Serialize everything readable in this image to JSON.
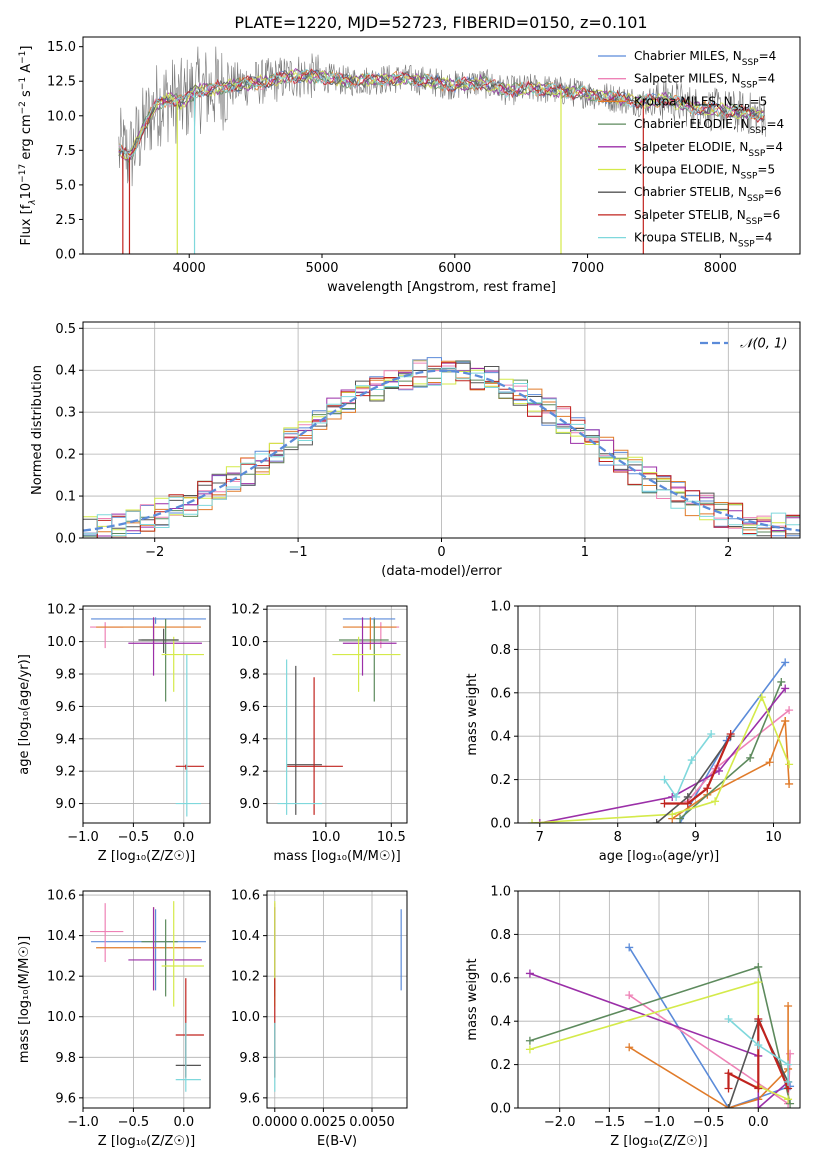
{
  "figure": {
    "title": "PLATE=1220, MJD=52723, FIBERID=0150, z=0.101"
  },
  "series_styles": [
    {
      "name": "Chabrier MILES",
      "nssp": "4",
      "color": "#5b8bd9"
    },
    {
      "name": "Salpeter MILES",
      "nssp": "4",
      "color": "#ee82b6"
    },
    {
      "name": "Kroupa MILES",
      "nssp": "5",
      "color": "#e07b2a"
    },
    {
      "name": "Chabrier ELODIE",
      "nssp": "4",
      "color": "#5d8a5d"
    },
    {
      "name": "Salpeter ELODIE",
      "nssp": "4",
      "color": "#9b2fa8"
    },
    {
      "name": "Kroupa ELODIE",
      "nssp": "5",
      "color": "#d4ea4a"
    },
    {
      "name": "Chabrier STELIB",
      "nssp": "6",
      "color": "#555555"
    },
    {
      "name": "Salpeter STELIB",
      "nssp": "6",
      "color": "#c0231e"
    },
    {
      "name": "Kroupa STELIB",
      "nssp": "4",
      "color": "#7fd8dc"
    }
  ],
  "chart_data": [
    {
      "type": "line",
      "panel": "spectrum",
      "title": "PLATE=1220, MJD=52723, FIBERID=0150, z=0.101",
      "xlabel": "wavelength [Angstrom, rest frame]",
      "ylabel_parts": [
        "Flux [f",
        "λ",
        "10",
        "−17",
        " erg cm",
        "−2",
        " s",
        "−1",
        " A",
        "−1",
        "]"
      ],
      "xlim": [
        3200,
        8600
      ],
      "ylim": [
        0,
        15.7
      ],
      "xticks": [
        4000,
        5000,
        6000,
        7000,
        8000
      ],
      "yticks": [
        0.0,
        2.5,
        5.0,
        7.5,
        10.0,
        12.5,
        15.0
      ],
      "ytick_labels": [
        "0.0",
        "2.5",
        "5.0",
        "7.5",
        "10.0",
        "12.5",
        "15.0"
      ],
      "legend": "top-right",
      "spectrum_anchors": {
        "x": [
          3470,
          3550,
          3650,
          3750,
          3850,
          3950,
          4050,
          4200,
          4400,
          4600,
          4800,
          5000,
          5200,
          5400,
          5600,
          5800,
          6000,
          6200,
          6400,
          6600,
          6800,
          7000,
          7200,
          7400,
          7600,
          7800,
          8000,
          8200,
          8340
        ],
        "y": [
          7.5,
          7.0,
          9.0,
          10.8,
          11.2,
          11.0,
          11.8,
          12.0,
          12.3,
          12.5,
          12.9,
          12.8,
          12.5,
          12.6,
          12.7,
          12.5,
          12.2,
          12.4,
          11.8,
          12.0,
          11.8,
          11.6,
          11.3,
          11.0,
          11.2,
          10.6,
          10.4,
          10.2,
          10.0
        ]
      },
      "dropouts": [
        {
          "x": 3500,
          "color": "#c0231e"
        },
        {
          "x": 3550,
          "color": "#c0231e"
        },
        {
          "x": 3910,
          "color": "#d4ea4a"
        },
        {
          "x": 4040,
          "color": "#7fd8dc"
        },
        {
          "x": 6800,
          "color": "#d4ea4a"
        },
        {
          "x": 7420,
          "color": "#c0231e"
        }
      ]
    },
    {
      "type": "histogram",
      "panel": "residuals",
      "xlabel": "(data-model)/error",
      "ylabel": "Normed distribution",
      "xlim": [
        -2.5,
        2.5
      ],
      "ylim": [
        0,
        0.515
      ],
      "xticks": [
        -2,
        -1,
        0,
        1,
        2
      ],
      "xtick_labels": [
        "−2",
        "−1",
        "0",
        "1",
        "2"
      ],
      "yticks": [
        0.0,
        0.1,
        0.2,
        0.3,
        0.4,
        0.5
      ],
      "ytick_labels": [
        "0.0",
        "0.1",
        "0.2",
        "0.3",
        "0.4",
        "0.5"
      ],
      "bin_width": 0.1,
      "reference": {
        "name": "𝒩(0, 1)",
        "mean": 0,
        "sigma": 1,
        "color": "#5b8bd9",
        "style": "dashed"
      },
      "legend": "top-right"
    },
    {
      "type": "errorbar",
      "panel": "age-vs-Z",
      "xlabel": "Z [log₁₀(Z/Z☉)]",
      "ylabel": "age  [log₁₀(age/yr)]",
      "xlim": [
        -1.0,
        0.26
      ],
      "ylim": [
        8.88,
        10.22
      ],
      "xticks": [
        -1.0,
        -0.5,
        0.0
      ],
      "xtick_labels": [
        "−1.0",
        "−0.5",
        "0.0"
      ],
      "yticks": [
        9.0,
        9.2,
        9.4,
        9.6,
        9.8,
        10.0,
        10.2
      ],
      "ytick_labels": [
        "9.0",
        "9.2",
        "9.4",
        "9.6",
        "9.8",
        "10.0",
        "10.2"
      ],
      "points": [
        {
          "s": 0,
          "x": -0.28,
          "xl": -0.92,
          "xh": 0.22,
          "y": 10.14,
          "yl": 10.11,
          "yh": 10.15
        },
        {
          "s": 1,
          "x": -0.78,
          "xl": -0.93,
          "xh": -0.6,
          "y": 10.09,
          "yl": 9.96,
          "yh": 10.12
        },
        {
          "s": 2,
          "x": -0.3,
          "xl": -0.87,
          "xh": 0.17,
          "y": 10.09,
          "yl": 9.95,
          "yh": 10.15
        },
        {
          "s": 3,
          "x": -0.18,
          "xl": -0.42,
          "xh": -0.06,
          "y": 10.01,
          "yl": 9.63,
          "yh": 10.14
        },
        {
          "s": 4,
          "x": -0.3,
          "xl": -0.55,
          "xh": 0.18,
          "y": 9.99,
          "yl": 9.79,
          "yh": 10.15
        },
        {
          "s": 5,
          "x": -0.1,
          "xl": -0.22,
          "xh": 0.2,
          "y": 9.92,
          "yl": 9.69,
          "yh": 10.03
        },
        {
          "s": 6,
          "x": -0.2,
          "xl": -0.45,
          "xh": -0.05,
          "y": 10.01,
          "yl": 9.93,
          "yh": 10.08
        },
        {
          "s": 7,
          "x": 0.02,
          "xl": -0.08,
          "xh": 0.2,
          "y": 9.23,
          "yl": 9.21,
          "yh": 9.24
        },
        {
          "s": 8,
          "x": 0.03,
          "xl": -0.08,
          "xh": 0.17,
          "y": 9.0,
          "yl": 8.92,
          "yh": 9.92
        }
      ]
    },
    {
      "type": "errorbar",
      "panel": "age-vs-mass",
      "xlabel": "mass [log₁₀(M/M☉)]",
      "xlim": [
        9.55,
        10.62
      ],
      "ylim": [
        8.88,
        10.22
      ],
      "xticks": [
        10.0,
        10.5
      ],
      "xtick_labels": [
        "10.0",
        "10.5"
      ],
      "yticks": [
        9.0,
        9.2,
        9.4,
        9.6,
        9.8,
        10.0,
        10.2
      ],
      "ytick_labels": [
        "9.0",
        "9.2",
        "9.4",
        "9.6",
        "9.8",
        "10.0",
        "10.2"
      ],
      "points": [
        {
          "s": 0,
          "x": 10.37,
          "xl": 10.13,
          "xh": 10.53,
          "y": 10.14,
          "yl": 10.11,
          "yh": 10.15
        },
        {
          "s": 1,
          "x": 10.42,
          "xl": 10.27,
          "xh": 10.56,
          "y": 10.09,
          "yl": 9.96,
          "yh": 10.12
        },
        {
          "s": 2,
          "x": 10.34,
          "xl": 10.13,
          "xh": 10.54,
          "y": 10.09,
          "yl": 9.95,
          "yh": 10.15
        },
        {
          "s": 3,
          "x": 10.37,
          "xl": 10.1,
          "xh": 10.48,
          "y": 10.01,
          "yl": 9.63,
          "yh": 10.14
        },
        {
          "s": 4,
          "x": 10.28,
          "xl": 10.13,
          "xh": 10.54,
          "y": 9.99,
          "yl": 9.79,
          "yh": 10.15
        },
        {
          "s": 5,
          "x": 10.25,
          "xl": 10.05,
          "xh": 10.57,
          "y": 9.92,
          "yl": 9.69,
          "yh": 10.03
        },
        {
          "s": 6,
          "x": 9.77,
          "xl": 9.7,
          "xh": 9.97,
          "y": 9.24,
          "yl": 8.93,
          "yh": 9.85
        },
        {
          "s": 7,
          "x": 9.91,
          "xl": 9.7,
          "xh": 10.13,
          "y": 9.23,
          "yl": 8.93,
          "yh": 9.78
        },
        {
          "s": 8,
          "x": 9.7,
          "xl": 9.63,
          "xh": 9.97,
          "y": 9.0,
          "yl": 8.93,
          "yh": 9.89
        }
      ]
    },
    {
      "type": "line",
      "panel": "massweight-vs-age",
      "xlabel": "age  [log₁₀(age/yr)]",
      "ylabel": "mass weight",
      "xlim": [
        6.72,
        10.34
      ],
      "ylim": [
        0,
        1.0
      ],
      "xticks": [
        7,
        8,
        9,
        10
      ],
      "xtick_labels": [
        "7",
        "8",
        "9",
        "10"
      ],
      "yticks": [
        0.0,
        0.2,
        0.4,
        0.6,
        0.8,
        1.0
      ],
      "ytick_labels": [
        "0.0",
        "0.2",
        "0.4",
        "0.6",
        "0.8",
        "1.0"
      ],
      "series": [
        {
          "s": 0,
          "x": [
            8.8,
            9.4,
            10.15
          ],
          "y": [
            0.0,
            0.38,
            0.74
          ]
        },
        {
          "s": 1,
          "x": [
            8.9,
            9.25,
            10.2
          ],
          "y": [
            0.1,
            0.25,
            0.52
          ]
        },
        {
          "s": 2,
          "x": [
            8.7,
            9.15,
            9.95,
            10.15,
            10.2,
            10.15
          ],
          "y": [
            0.02,
            0.13,
            0.28,
            0.47,
            0.18,
            0.47
          ]
        },
        {
          "s": 3,
          "x": [
            8.8,
            9.7,
            10.1
          ],
          "y": [
            0.02,
            0.3,
            0.65
          ]
        },
        {
          "s": 4,
          "x": [
            7.0,
            8.7,
            9.3,
            10.15
          ],
          "y": [
            0.0,
            0.12,
            0.24,
            0.62
          ]
        },
        {
          "s": 5,
          "x": [
            6.9,
            8.7,
            9.25,
            9.85,
            10.2
          ],
          "y": [
            0.0,
            0.04,
            0.1,
            0.58,
            0.27
          ]
        },
        {
          "s": 6,
          "x": [
            8.5,
            8.9,
            9.45
          ],
          "y": [
            0.0,
            0.12,
            0.4
          ]
        },
        {
          "s": 7,
          "x": [
            8.6,
            8.9,
            9.15,
            9.45
          ],
          "y": [
            0.09,
            0.09,
            0.16,
            0.41
          ]
        },
        {
          "s": 8,
          "x": [
            8.6,
            8.75,
            8.95,
            9.2
          ],
          "y": [
            0.2,
            0.12,
            0.29,
            0.41
          ]
        }
      ]
    },
    {
      "type": "errorbar",
      "panel": "mass-vs-Z",
      "xlabel": "Z [log₁₀(Z/Z☉)]",
      "ylabel": "mass [log₁₀(M/M☉)]",
      "xlim": [
        -1.0,
        0.26
      ],
      "ylim": [
        9.55,
        10.62
      ],
      "xticks": [
        -1.0,
        -0.5,
        0.0
      ],
      "xtick_labels": [
        "−1.0",
        "−0.5",
        "0.0"
      ],
      "yticks": [
        9.6,
        9.8,
        10.0,
        10.2,
        10.4,
        10.6
      ],
      "ytick_labels": [
        "9.6",
        "9.8",
        "10.0",
        "10.2",
        "10.4",
        "10.6"
      ],
      "points": [
        {
          "s": 0,
          "x": -0.28,
          "xl": -0.92,
          "xh": 0.22,
          "y": 10.37,
          "yl": 10.13,
          "yh": 10.53
        },
        {
          "s": 1,
          "x": -0.78,
          "xl": -0.93,
          "xh": -0.6,
          "y": 10.42,
          "yl": 10.27,
          "yh": 10.56
        },
        {
          "s": 2,
          "x": -0.3,
          "xl": -0.87,
          "xh": 0.17,
          "y": 10.34,
          "yl": 10.13,
          "yh": 10.54
        },
        {
          "s": 3,
          "x": -0.18,
          "xl": -0.42,
          "xh": -0.06,
          "y": 10.37,
          "yl": 10.1,
          "yh": 10.48
        },
        {
          "s": 4,
          "x": -0.3,
          "xl": -0.55,
          "xh": 0.18,
          "y": 10.28,
          "yl": 10.13,
          "yh": 10.54
        },
        {
          "s": 5,
          "x": -0.1,
          "xl": -0.22,
          "xh": 0.2,
          "y": 10.25,
          "yl": 10.05,
          "yh": 10.57
        },
        {
          "s": 6,
          "x": 0.02,
          "xl": -0.08,
          "xh": 0.17,
          "y": 9.76,
          "yl": 9.7,
          "yh": 9.97
        },
        {
          "s": 7,
          "x": 0.02,
          "xl": -0.08,
          "xh": 0.2,
          "y": 9.91,
          "yl": 9.7,
          "yh": 10.19
        },
        {
          "s": 8,
          "x": 0.02,
          "xl": -0.08,
          "xh": 0.17,
          "y": 9.69,
          "yl": 9.63,
          "yh": 9.97
        }
      ]
    },
    {
      "type": "errorbar",
      "panel": "mass-vs-EBV",
      "xlabel": "E(B-V)",
      "xlim": [
        -0.0004,
        0.0068
      ],
      "ylim": [
        9.55,
        10.62
      ],
      "xticks": [
        0.0,
        0.0025,
        0.005
      ],
      "xtick_labels": [
        "0.0000",
        "0.0025",
        "0.0050"
      ],
      "yticks": [
        9.6,
        9.8,
        10.0,
        10.2,
        10.4,
        10.6
      ],
      "ytick_labels": [
        "9.6",
        "9.8",
        "10.0",
        "10.2",
        "10.4",
        "10.6"
      ],
      "points": [
        {
          "s": 0,
          "x": 0.0065,
          "xl": 0.0065,
          "xh": 0.0065,
          "y": 10.37,
          "yl": 10.13,
          "yh": 10.53
        },
        {
          "s": 1,
          "x": 0.0,
          "xl": 0.0,
          "xh": 0.0,
          "y": 10.42,
          "yl": 10.27,
          "yh": 10.56
        },
        {
          "s": 2,
          "x": 0.0,
          "xl": 0.0,
          "xh": 0.0,
          "y": 10.34,
          "yl": 10.13,
          "yh": 10.54
        },
        {
          "s": 3,
          "x": 0.0,
          "xl": 0.0,
          "xh": 0.0,
          "y": 10.37,
          "yl": 10.1,
          "yh": 10.48
        },
        {
          "s": 4,
          "x": 0.0,
          "xl": 0.0,
          "xh": 0.0,
          "y": 10.28,
          "yl": 10.13,
          "yh": 10.54
        },
        {
          "s": 5,
          "x": 0.0,
          "xl": 0.0,
          "xh": 0.0,
          "y": 10.25,
          "yl": 10.05,
          "yh": 10.57
        },
        {
          "s": 6,
          "x": 0.0,
          "xl": 0.0,
          "xh": 0.0,
          "y": 9.76,
          "yl": 9.7,
          "yh": 9.97
        },
        {
          "s": 7,
          "x": 0.0,
          "xl": 0.0,
          "xh": 0.0,
          "y": 9.91,
          "yl": 9.7,
          "yh": 10.19
        },
        {
          "s": 8,
          "x": 0.0,
          "xl": 0.0,
          "xh": 0.0,
          "y": 9.69,
          "yl": 9.63,
          "yh": 9.97
        }
      ]
    },
    {
      "type": "line",
      "panel": "massweight-vs-Z",
      "xlabel": "Z [log₁₀(Z/Z☉)]",
      "ylabel": "mass weight",
      "xlim": [
        -2.42,
        0.42
      ],
      "ylim": [
        0,
        1.0
      ],
      "xticks": [
        -2.0,
        -1.5,
        -1.0,
        -0.5,
        0.0
      ],
      "xtick_labels": [
        "−2.0",
        "−1.5",
        "−1.0",
        "−0.5",
        "0.0"
      ],
      "yticks": [
        0.0,
        0.2,
        0.4,
        0.6,
        0.8,
        1.0
      ],
      "ytick_labels": [
        "0.0",
        "0.2",
        "0.4",
        "0.6",
        "0.8",
        "1.0"
      ],
      "series": [
        {
          "s": 0,
          "x": [
            -1.3,
            -0.3,
            0.32
          ],
          "y": [
            0.74,
            0.0,
            0.1
          ]
        },
        {
          "s": 1,
          "x": [
            -1.3,
            0.3,
            0.32
          ],
          "y": [
            0.52,
            0.02,
            0.25
          ]
        },
        {
          "s": 2,
          "x": [
            -1.3,
            -0.3,
            0.0,
            0.3,
            0.3
          ],
          "y": [
            0.28,
            0.0,
            0.04,
            0.18,
            0.47
          ]
        },
        {
          "s": 3,
          "x": [
            -2.3,
            0.0,
            0.32
          ],
          "y": [
            0.31,
            0.65,
            0.02
          ]
        },
        {
          "s": 4,
          "x": [
            -2.3,
            0.0,
            0.0,
            0.3
          ],
          "y": [
            0.62,
            0.24,
            0.0,
            0.12
          ]
        },
        {
          "s": 5,
          "x": [
            -2.3,
            0.0,
            0.0,
            0.3
          ],
          "y": [
            0.27,
            0.58,
            0.1,
            0.04
          ]
        },
        {
          "s": 6,
          "x": [
            -0.3,
            0.0,
            0.3
          ],
          "y": [
            0.0,
            0.4,
            0.12
          ]
        },
        {
          "s": 7,
          "x": [
            -0.3,
            -0.3,
            0.0,
            0.0,
            0.3
          ],
          "y": [
            0.09,
            0.16,
            0.09,
            0.41,
            0.09
          ]
        },
        {
          "s": 8,
          "x": [
            -0.3,
            0.0,
            0.3,
            0.3
          ],
          "y": [
            0.41,
            0.29,
            0.2,
            0.12
          ]
        }
      ]
    }
  ]
}
